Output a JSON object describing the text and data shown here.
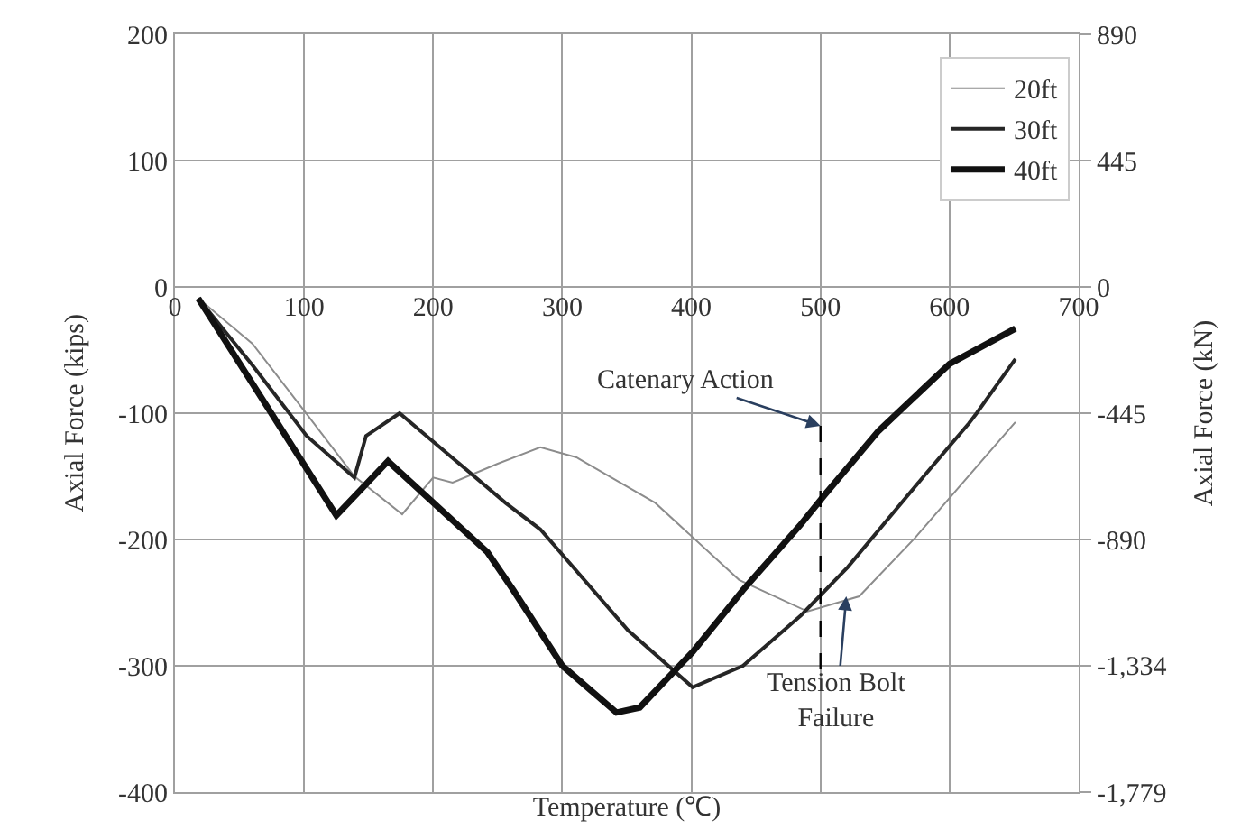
{
  "chart_data": {
    "type": "line",
    "xlabel": "Temperature (℃)",
    "ylabel": "Axial Force (kips)",
    "y2label": "Axial Force (kN)",
    "xlim": [
      0,
      700
    ],
    "xticks": [
      0,
      100,
      200,
      300,
      400,
      500,
      600,
      700
    ],
    "ylim": [
      -400,
      200
    ],
    "yticks": [
      -400,
      -300,
      -200,
      -100,
      0,
      100,
      200
    ],
    "y2lim": [
      -1779,
      890
    ],
    "y2ticks": [
      {
        "value": -1779,
        "label": "-1,779"
      },
      {
        "value": -1334,
        "label": "-1,334"
      },
      -890,
      -445,
      0,
      445,
      890
    ],
    "grid": true,
    "legend": "top right",
    "marker": "none",
    "series": [
      {
        "name": "20ft",
        "color": "#8c8c8c",
        "x": [
          18,
          60,
          100,
          139,
          176,
          200,
          215,
          250,
          283,
          311,
          372,
          437,
          490,
          530,
          573,
          651
        ],
        "values": [
          -9,
          -45,
          -98,
          -150,
          -180,
          -151,
          -155,
          -140,
          -127,
          -135,
          -171,
          -232,
          -257,
          -245,
          -199,
          -107
        ]
      },
      {
        "name": "30ft",
        "color": "#262626",
        "x": [
          18,
          60,
          102,
          139,
          148,
          174,
          256,
          283,
          351,
          401,
          440,
          485,
          521,
          580,
          615,
          621,
          651
        ],
        "values": [
          -9,
          -62,
          -118,
          -151,
          -118,
          -100,
          -171,
          -192,
          -272,
          -317,
          -300,
          -260,
          -222,
          -150,
          -108,
          -100,
          -57
        ]
      },
      {
        "name": "40ft",
        "color": "#111111",
        "x": [
          18,
          125,
          165,
          242,
          262,
          300,
          342,
          360,
          401,
          440,
          484,
          503,
          545,
          600,
          651
        ],
        "values": [
          -9,
          -181,
          -138,
          -210,
          -240,
          -300,
          -337,
          -333,
          -289,
          -240,
          -189,
          -165,
          -114,
          -61,
          -33
        ]
      },
      {
        "color": "#000000",
        "line_style": "dashed",
        "x": [
          500,
          500
        ],
        "values": [
          -110,
          -305
        ]
      }
    ],
    "annotations": [
      {
        "text": "Catenary Action",
        "x": 500,
        "y": -110
      },
      {
        "text": "Tension Bolt\nFailure",
        "x": 520,
        "y": -245
      }
    ]
  }
}
